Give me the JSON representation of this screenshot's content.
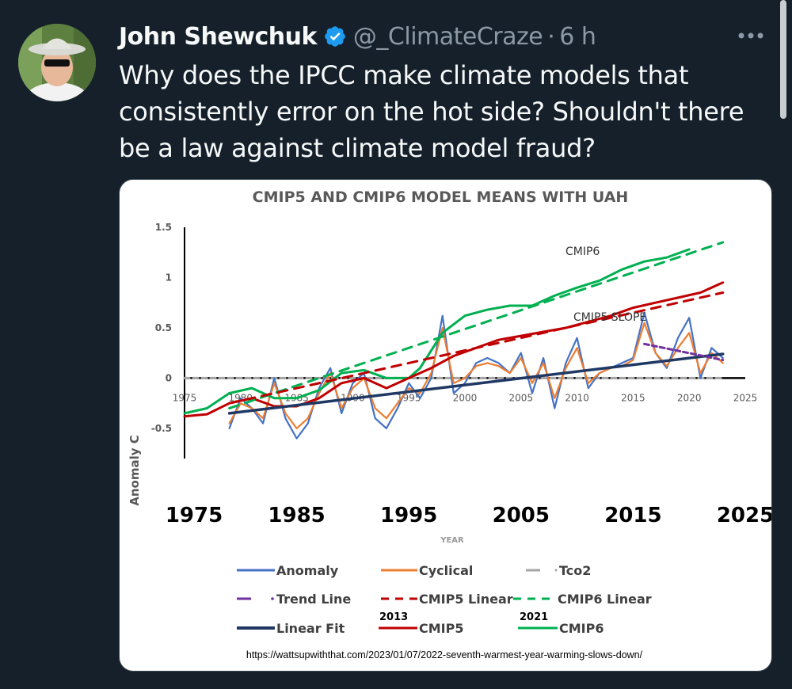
{
  "tweet": {
    "author_name": "John Shewchuk",
    "handle": "@_ClimateCraze",
    "separator": "·",
    "time": "6 h",
    "text": "Why does the IPCC make climate models that consistently error on the hot side?  Shouldn't there be a law against climate model fraud?"
  },
  "icons": {
    "verified": "verified-badge-icon",
    "more": "more-options-icon"
  },
  "colors": {
    "background": "#15202b",
    "verified": "#1d9bf0",
    "anomaly": "#4472c4",
    "cyclical": "#ed7d31",
    "tco2": "#a5a5a5",
    "trend_line": "#7030a0",
    "cmip5": "#c00000",
    "cmip6": "#00b050",
    "linear_fit": "#1f3864"
  },
  "chart_data": {
    "type": "line",
    "title": "CMIP5 AND CMIP6 MODEL MEANS WITH UAH",
    "ylabel": "Anomaly C",
    "xlabel": "YEAR",
    "ylim": [
      -0.8,
      1.5
    ],
    "xlim": [
      1975,
      2025
    ],
    "y_ticks": [
      "1.5",
      "1",
      "0.5",
      "0",
      "-0.5"
    ],
    "x_ticks_small": [
      "1975",
      "1980",
      "1985",
      "1990",
      "1995",
      "2000",
      "2005",
      "2010",
      "2015",
      "2020",
      "2025"
    ],
    "x_ticks_large": [
      "1975",
      "1985",
      "1995",
      "2005",
      "2015",
      "2025"
    ],
    "annotations": {
      "cmip6": "CMIP6",
      "cmip5_slope": "CMIP5 SLOPE",
      "year_2013": "2013",
      "year_2021": "2021"
    },
    "legend": {
      "anomaly": "Anomaly",
      "cyclical": "Cyclical",
      "tco2": "Tco2",
      "trend_line": "Trend Line",
      "cmip5_linear": "CMIP5 Linear",
      "cmip6_linear": "CMIP6 Linear",
      "linear_fit": "Linear Fit",
      "cmip5": "CMIP5",
      "cmip6": "CMIP6"
    },
    "source_url": "https://wattsupwiththat.com/2023/01/07/2022-seventh-warmest-year-warming-slows-down/",
    "series": [
      {
        "name": "CMIP6",
        "x": [
          1975,
          1977,
          1979,
          1981,
          1983,
          1985,
          1987,
          1989,
          1991,
          1993,
          1995,
          1996,
          1998,
          2000,
          2002,
          2004,
          2006,
          2008,
          2010,
          2012,
          2014,
          2016,
          2018,
          2020
        ],
        "y": [
          -0.35,
          -0.3,
          -0.15,
          -0.1,
          -0.2,
          -0.2,
          -0.12,
          0.05,
          0.08,
          0.0,
          0.0,
          0.1,
          0.45,
          0.62,
          0.68,
          0.72,
          0.72,
          0.82,
          0.9,
          0.97,
          1.08,
          1.16,
          1.2,
          1.28
        ]
      },
      {
        "name": "CMIP5",
        "x": [
          1975,
          1977,
          1979,
          1981,
          1983,
          1985,
          1987,
          1989,
          1991,
          1993,
          1995,
          1997,
          1999,
          2001,
          2003,
          2005,
          2007,
          2009,
          2011,
          2013,
          2015,
          2017,
          2019,
          2021,
          2023
        ],
        "y": [
          -0.38,
          -0.36,
          -0.25,
          -0.2,
          -0.28,
          -0.28,
          -0.2,
          -0.05,
          0.0,
          -0.1,
          0.0,
          0.1,
          0.22,
          0.3,
          0.38,
          0.42,
          0.46,
          0.5,
          0.56,
          0.62,
          0.7,
          0.75,
          0.8,
          0.85,
          0.95
        ]
      },
      {
        "name": "CMIP6 Linear",
        "x": [
          1979,
          2023
        ],
        "y": [
          -0.3,
          1.35
        ]
      },
      {
        "name": "CMIP5 Linear",
        "x": [
          1979,
          2023
        ],
        "y": [
          -0.25,
          0.85
        ]
      },
      {
        "name": "Linear Fit",
        "x": [
          1979,
          2023
        ],
        "y": [
          -0.35,
          0.24
        ]
      },
      {
        "name": "Trend Line",
        "x": [
          2016,
          2023
        ],
        "y": [
          0.34,
          0.18
        ]
      },
      {
        "name": "Tco2",
        "x": [
          1975,
          2023
        ],
        "y": [
          0.0,
          0.0
        ]
      },
      {
        "name": "Anomaly",
        "x": [
          1979,
          1980,
          1981,
          1982,
          1983,
          1984,
          1985,
          1986,
          1987,
          1988,
          1989,
          1990,
          1991,
          1992,
          1993,
          1994,
          1995,
          1996,
          1997,
          1998,
          1999,
          2000,
          2001,
          2002,
          2003,
          2004,
          2005,
          2006,
          2007,
          2008,
          2009,
          2010,
          2011,
          2012,
          2013,
          2014,
          2015,
          2016,
          2017,
          2018,
          2019,
          2020,
          2021,
          2022,
          2023
        ],
        "y": [
          -0.5,
          -0.2,
          -0.3,
          -0.45,
          0.0,
          -0.4,
          -0.6,
          -0.45,
          -0.1,
          0.1,
          -0.35,
          -0.05,
          0.05,
          -0.4,
          -0.5,
          -0.3,
          -0.05,
          -0.2,
          0.0,
          0.62,
          -0.15,
          -0.05,
          0.15,
          0.2,
          0.15,
          0.05,
          0.25,
          -0.15,
          0.2,
          -0.3,
          0.15,
          0.4,
          -0.1,
          0.05,
          0.1,
          0.15,
          0.2,
          0.65,
          0.25,
          0.1,
          0.4,
          0.6,
          0.0,
          0.3,
          0.2
        ]
      },
      {
        "name": "Cyclical",
        "x": [
          1979,
          1980,
          1981,
          1982,
          1983,
          1984,
          1985,
          1986,
          1987,
          1988,
          1989,
          1990,
          1991,
          1992,
          1993,
          1994,
          1995,
          1996,
          1997,
          1998,
          1999,
          2000,
          2001,
          2002,
          2003,
          2004,
          2005,
          2006,
          2007,
          2008,
          2009,
          2010,
          2011,
          2012,
          2013,
          2014,
          2015,
          2016,
          2017,
          2018,
          2019,
          2020,
          2021,
          2022,
          2023
        ],
        "y": [
          -0.45,
          -0.25,
          -0.3,
          -0.4,
          -0.05,
          -0.35,
          -0.5,
          -0.4,
          -0.15,
          0.05,
          -0.3,
          -0.1,
          0.0,
          -0.3,
          -0.4,
          -0.25,
          -0.1,
          -0.15,
          0.05,
          0.5,
          -0.05,
          0.0,
          0.12,
          0.15,
          0.12,
          0.05,
          0.2,
          -0.05,
          0.15,
          -0.2,
          0.1,
          0.3,
          -0.05,
          0.05,
          0.1,
          0.12,
          0.18,
          0.55,
          0.25,
          0.12,
          0.3,
          0.45,
          0.05,
          0.25,
          0.15
        ]
      }
    ]
  }
}
